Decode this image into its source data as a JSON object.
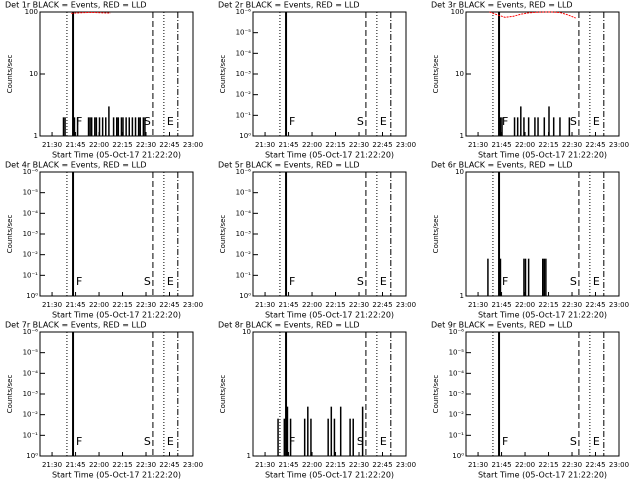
{
  "chart_data": [
    {
      "type": "spikes",
      "title": "Det 1r BLACK = Events, RED = LLD",
      "ylabel": "Counts/sec",
      "xlabel": "Start Time (05-Oct-17 21:22:20)",
      "log": true,
      "ylim": [
        1,
        100
      ],
      "yticks": [
        1,
        10,
        100
      ],
      "xlim": [
        0,
        97.7
      ],
      "xticks": [
        {
          "value": 7.7,
          "label": "21:30"
        },
        {
          "value": 22.7,
          "label": "21:45"
        },
        {
          "value": 37.7,
          "label": "22:00"
        },
        {
          "value": 52.7,
          "label": "22:15"
        },
        {
          "value": 67.7,
          "label": "22:30"
        },
        {
          "value": 82.7,
          "label": "22:45"
        },
        {
          "value": 97.7,
          "label": "23:00"
        }
      ],
      "markers": [
        {
          "x": 17.2,
          "style": "dotted"
        },
        {
          "x": 21.1,
          "style": "solid",
          "label": "F"
        },
        {
          "x": 72.1,
          "style": "dashed",
          "label": "S"
        },
        {
          "x": 79.1,
          "style": "dotted",
          "label": "E"
        },
        {
          "x": 88,
          "style": "dashdot"
        }
      ],
      "series": [
        {
          "color": "#000000",
          "x": [
            15,
            16,
            22,
            24,
            31,
            32,
            33,
            35,
            36,
            38,
            40,
            42,
            44,
            47,
            49,
            50,
            52,
            53,
            55,
            57,
            59,
            61,
            63,
            64,
            66,
            67
          ],
          "values": [
            2,
            2,
            2,
            2,
            2,
            2,
            2,
            2,
            2,
            2,
            2,
            2,
            3,
            2,
            2,
            2,
            2,
            2,
            2,
            2,
            2,
            2,
            2,
            2,
            2,
            2
          ]
        },
        {
          "color": "#ff0000",
          "x": [
            20,
            25,
            30,
            35,
            40,
            45
          ],
          "values": [
            95,
            97,
            98,
            98,
            97,
            96
          ]
        }
      ]
    },
    {
      "type": "spikes",
      "title": "Det 2r BLACK = Events, RED = LLD",
      "ylabel": "Counts/sec",
      "xlabel": "Start Time (05-Oct-17 21:22:20)",
      "log": true,
      "ylim": [
        1,
        1e-06
      ],
      "yticks": [
        {
          "value": 1,
          "label": "10⁰"
        },
        {
          "value": 0.1,
          "label": "10⁻¹"
        },
        {
          "value": 0.01,
          "label": "10⁻²"
        },
        {
          "value": 0.001,
          "label": "10⁻³"
        },
        {
          "value": 0.0001,
          "label": "10⁻⁴"
        },
        {
          "value": 1e-05,
          "label": "10⁻⁵"
        },
        {
          "value": 1e-06,
          "label": "10⁻⁶"
        }
      ],
      "xlim": [
        0,
        97.7
      ],
      "xticks": [
        {
          "value": 7.7,
          "label": "21:30"
        },
        {
          "value": 22.7,
          "label": "21:45"
        },
        {
          "value": 37.7,
          "label": "22:00"
        },
        {
          "value": 52.7,
          "label": "22:15"
        },
        {
          "value": 67.7,
          "label": "22:30"
        },
        {
          "value": 82.7,
          "label": "22:45"
        },
        {
          "value": 97.7,
          "label": "23:00"
        }
      ],
      "markers": [
        {
          "x": 17.2,
          "style": "dotted"
        },
        {
          "x": 21.1,
          "style": "solid",
          "label": "F"
        },
        {
          "x": 72.1,
          "style": "dashed",
          "label": "S"
        },
        {
          "x": 79.1,
          "style": "dotted",
          "label": "E"
        },
        {
          "x": 88,
          "style": "dashdot"
        }
      ],
      "series": []
    },
    {
      "type": "spikes",
      "title": "Det 3r BLACK = Events, RED = LLD",
      "ylabel": "Counts/sec",
      "xlabel": "Start Time (05-Oct-17 21:22:20)",
      "log": true,
      "ylim": [
        1,
        100
      ],
      "yticks": [
        1,
        10,
        100
      ],
      "xlim": [
        0,
        97.7
      ],
      "xticks": [
        {
          "value": 7.7,
          "label": "21:30"
        },
        {
          "value": 22.7,
          "label": "21:45"
        },
        {
          "value": 37.7,
          "label": "22:00"
        },
        {
          "value": 52.7,
          "label": "22:15"
        },
        {
          "value": 67.7,
          "label": "22:30"
        },
        {
          "value": 82.7,
          "label": "22:45"
        },
        {
          "value": 97.7,
          "label": "23:00"
        }
      ],
      "markers": [
        {
          "x": 17.2,
          "style": "dotted"
        },
        {
          "x": 21.1,
          "style": "solid",
          "label": "F"
        },
        {
          "x": 72.1,
          "style": "dashed",
          "label": "S"
        },
        {
          "x": 79.1,
          "style": "dotted",
          "label": "E"
        },
        {
          "x": 88,
          "style": "dashdot"
        }
      ],
      "series": [
        {
          "color": "#000000",
          "x": [
            22,
            23,
            31,
            33,
            35,
            37,
            40,
            44,
            46,
            50,
            53,
            56,
            60,
            66
          ],
          "values": [
            2,
            2,
            2,
            2,
            3,
            2,
            2,
            2,
            2,
            2,
            3,
            2,
            2,
            2
          ]
        },
        {
          "color": "#ff0000",
          "x": [
            15,
            20,
            25,
            30,
            35,
            40,
            45,
            50,
            55,
            60,
            65,
            70
          ],
          "values": [
            100,
            90,
            82,
            85,
            92,
            97,
            99,
            100,
            100,
            98,
            90,
            80
          ]
        }
      ]
    },
    {
      "type": "spikes",
      "title": "Det 4r BLACK = Events, RED = LLD",
      "ylabel": "Counts/sec",
      "xlabel": "Start Time (05-Oct-17 21:22:20)",
      "log": true,
      "ylim": [
        1,
        1e-06
      ],
      "yticks": [
        {
          "value": 1,
          "label": "10⁰"
        },
        {
          "value": 0.1,
          "label": "10⁻¹"
        },
        {
          "value": 0.01,
          "label": "10⁻²"
        },
        {
          "value": 0.001,
          "label": "10⁻³"
        },
        {
          "value": 0.0001,
          "label": "10⁻⁴"
        },
        {
          "value": 1e-05,
          "label": "10⁻⁵"
        },
        {
          "value": 1e-06,
          "label": "10⁻⁶"
        }
      ],
      "xlim": [
        0,
        97.7
      ],
      "xticks": [
        {
          "value": 7.7,
          "label": "21:30"
        },
        {
          "value": 22.7,
          "label": "21:45"
        },
        {
          "value": 37.7,
          "label": "22:00"
        },
        {
          "value": 52.7,
          "label": "22:15"
        },
        {
          "value": 67.7,
          "label": "22:30"
        },
        {
          "value": 82.7,
          "label": "22:45"
        },
        {
          "value": 97.7,
          "label": "23:00"
        }
      ],
      "markers": [
        {
          "x": 17.2,
          "style": "dotted"
        },
        {
          "x": 21.1,
          "style": "solid",
          "label": "F"
        },
        {
          "x": 72.1,
          "style": "dashed",
          "label": "S"
        },
        {
          "x": 79.1,
          "style": "dotted",
          "label": "E"
        },
        {
          "x": 88,
          "style": "dashdot"
        }
      ],
      "series": []
    },
    {
      "type": "spikes",
      "title": "Det 5r BLACK = Events, RED = LLD",
      "ylabel": "Counts/sec",
      "xlabel": "Start Time (05-Oct-17 21:22:20)",
      "log": true,
      "ylim": [
        1,
        1e-06
      ],
      "yticks": [
        {
          "value": 1,
          "label": "10⁰"
        },
        {
          "value": 0.1,
          "label": "10⁻¹"
        },
        {
          "value": 0.01,
          "label": "10⁻²"
        },
        {
          "value": 0.001,
          "label": "10⁻³"
        },
        {
          "value": 0.0001,
          "label": "10⁻⁴"
        },
        {
          "value": 1e-05,
          "label": "10⁻⁵"
        },
        {
          "value": 1e-06,
          "label": "10⁻⁶"
        }
      ],
      "xlim": [
        0,
        97.7
      ],
      "xticks": [
        {
          "value": 7.7,
          "label": "21:30"
        },
        {
          "value": 22.7,
          "label": "21:45"
        },
        {
          "value": 37.7,
          "label": "22:00"
        },
        {
          "value": 52.7,
          "label": "22:15"
        },
        {
          "value": 67.7,
          "label": "22:30"
        },
        {
          "value": 82.7,
          "label": "22:45"
        },
        {
          "value": 97.7,
          "label": "23:00"
        }
      ],
      "markers": [
        {
          "x": 17.2,
          "style": "dotted"
        },
        {
          "x": 21.1,
          "style": "solid",
          "label": "F"
        },
        {
          "x": 72.1,
          "style": "dashed",
          "label": "S"
        },
        {
          "x": 79.1,
          "style": "dotted",
          "label": "E"
        },
        {
          "x": 88,
          "style": "dashdot"
        }
      ],
      "series": []
    },
    {
      "type": "spikes",
      "title": "Det 6r BLACK = Events, RED = LLD",
      "ylabel": "Counts/sec",
      "xlabel": "Start Time (05-Oct-17 21:22:20)",
      "log": true,
      "ylim": [
        1,
        10
      ],
      "yticks": [
        1,
        10
      ],
      "xlim": [
        0,
        97.7
      ],
      "xticks": [
        {
          "value": 7.7,
          "label": "21:30"
        },
        {
          "value": 22.7,
          "label": "21:45"
        },
        {
          "value": 37.7,
          "label": "22:00"
        },
        {
          "value": 52.7,
          "label": "22:15"
        },
        {
          "value": 67.7,
          "label": "22:30"
        },
        {
          "value": 82.7,
          "label": "22:45"
        },
        {
          "value": 97.7,
          "label": "23:00"
        }
      ],
      "markers": [
        {
          "x": 17.2,
          "style": "dotted"
        },
        {
          "x": 21.1,
          "style": "solid",
          "label": "F"
        },
        {
          "x": 72.1,
          "style": "dashed",
          "label": "S"
        },
        {
          "x": 79.1,
          "style": "dotted",
          "label": "E"
        },
        {
          "x": 88,
          "style": "dashdot"
        }
      ],
      "series": [
        {
          "color": "#000000",
          "x": [
            14,
            22,
            37,
            38,
            40,
            49,
            50,
            51
          ],
          "values": [
            2,
            2,
            2,
            2,
            2,
            2,
            2,
            2
          ]
        }
      ]
    },
    {
      "type": "spikes",
      "title": "Det 7r BLACK = Events, RED = LLD",
      "ylabel": "Counts/sec",
      "xlabel": "Start Time (05-Oct-17 21:22:20)",
      "log": true,
      "ylim": [
        1,
        1e-06
      ],
      "yticks": [
        {
          "value": 1,
          "label": "10⁰"
        },
        {
          "value": 0.1,
          "label": "10⁻¹"
        },
        {
          "value": 0.01,
          "label": "10⁻²"
        },
        {
          "value": 0.001,
          "label": "10⁻³"
        },
        {
          "value": 0.0001,
          "label": "10⁻⁴"
        },
        {
          "value": 1e-05,
          "label": "10⁻⁵"
        },
        {
          "value": 1e-06,
          "label": "10⁻⁶"
        }
      ],
      "xlim": [
        0,
        97.7
      ],
      "xticks": [
        {
          "value": 7.7,
          "label": "21:30"
        },
        {
          "value": 22.7,
          "label": "21:45"
        },
        {
          "value": 37.7,
          "label": "22:00"
        },
        {
          "value": 52.7,
          "label": "22:15"
        },
        {
          "value": 67.7,
          "label": "22:30"
        },
        {
          "value": 82.7,
          "label": "22:45"
        },
        {
          "value": 97.7,
          "label": "23:00"
        }
      ],
      "markers": [
        {
          "x": 17.2,
          "style": "dotted"
        },
        {
          "x": 21.1,
          "style": "solid",
          "label": "F"
        },
        {
          "x": 72.1,
          "style": "dashed",
          "label": "S"
        },
        {
          "x": 79.1,
          "style": "dotted",
          "label": "E"
        },
        {
          "x": 88,
          "style": "dashdot"
        }
      ],
      "series": []
    },
    {
      "type": "spikes",
      "title": "Det 8r BLACK = Events, RED = LLD",
      "ylabel": "Counts/sec",
      "xlabel": "Start Time (05-Oct-17 21:22:20)",
      "log": true,
      "ylim": [
        1,
        10
      ],
      "yticks": [
        1,
        10
      ],
      "xlim": [
        0,
        97.7
      ],
      "xticks": [
        {
          "value": 7.7,
          "label": "21:30"
        },
        {
          "value": 22.7,
          "label": "21:45"
        },
        {
          "value": 37.7,
          "label": "22:00"
        },
        {
          "value": 52.7,
          "label": "22:15"
        },
        {
          "value": 67.7,
          "label": "22:30"
        },
        {
          "value": 82.7,
          "label": "22:45"
        },
        {
          "value": 97.7,
          "label": "23:00"
        }
      ],
      "markers": [
        {
          "x": 17.2,
          "style": "dotted"
        },
        {
          "x": 21.1,
          "style": "solid",
          "label": "F"
        },
        {
          "x": 72.1,
          "style": "dashed",
          "label": "S"
        },
        {
          "x": 79.1,
          "style": "dotted",
          "label": "E"
        },
        {
          "x": 88,
          "style": "dashdot"
        }
      ],
      "series": [
        {
          "color": "#000000",
          "x": [
            16,
            20,
            22,
            24,
            33,
            35,
            37,
            48,
            50,
            52,
            56,
            62,
            64,
            70
          ],
          "values": [
            2,
            2,
            2.5,
            2,
            2,
            2.5,
            2,
            2,
            2.5,
            2,
            2.5,
            2,
            2,
            2.5
          ]
        }
      ]
    },
    {
      "type": "spikes",
      "title": "Det 9r BLACK = Events, RED = LLD",
      "ylabel": "Counts/sec",
      "xlabel": "Start Time (05-Oct-17 21:22:20)",
      "log": true,
      "ylim": [
        1,
        1e-06
      ],
      "yticks": [
        {
          "value": 1,
          "label": "10⁰"
        },
        {
          "value": 0.1,
          "label": "10⁻¹"
        },
        {
          "value": 0.01,
          "label": "10⁻²"
        },
        {
          "value": 0.001,
          "label": "10⁻³"
        },
        {
          "value": 0.0001,
          "label": "10⁻⁴"
        },
        {
          "value": 1e-05,
          "label": "10⁻⁵"
        },
        {
          "value": 1e-06,
          "label": "10⁻⁶"
        }
      ],
      "xlim": [
        0,
        97.7
      ],
      "xticks": [
        {
          "value": 7.7,
          "label": "21:30"
        },
        {
          "value": 22.7,
          "label": "21:45"
        },
        {
          "value": 37.7,
          "label": "22:00"
        },
        {
          "value": 52.7,
          "label": "22:15"
        },
        {
          "value": 67.7,
          "label": "22:30"
        },
        {
          "value": 82.7,
          "label": "22:45"
        },
        {
          "value": 97.7,
          "label": "23:00"
        }
      ],
      "markers": [
        {
          "x": 17.2,
          "style": "dotted"
        },
        {
          "x": 21.1,
          "style": "solid",
          "label": "F"
        },
        {
          "x": 72.1,
          "style": "dashed",
          "label": "S"
        },
        {
          "x": 79.1,
          "style": "dotted",
          "label": "E"
        },
        {
          "x": 88,
          "style": "dashdot"
        }
      ],
      "series": []
    }
  ]
}
